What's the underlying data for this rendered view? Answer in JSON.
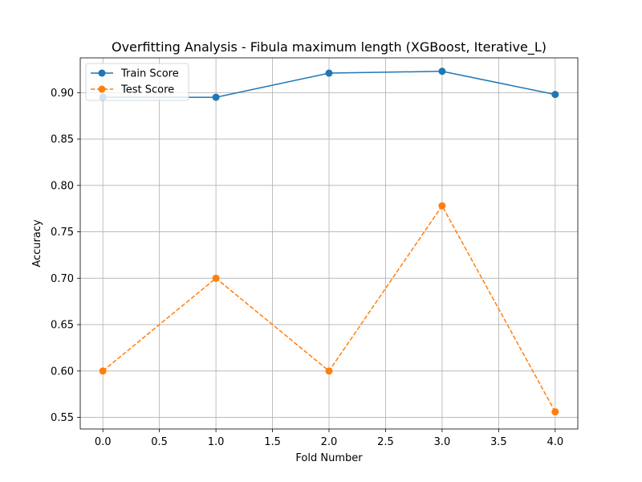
{
  "chart_data": {
    "type": "line",
    "title": "Overfitting Analysis - Fibula maximum length (XGBoost, Iterative_L)",
    "xlabel": "Fold Number",
    "ylabel": "Accuracy",
    "xlim": [
      -0.2,
      4.2
    ],
    "ylim": [
      0.5375,
      0.9375
    ],
    "xticks": [
      0.0,
      0.5,
      1.0,
      1.5,
      2.0,
      2.5,
      3.0,
      3.5,
      4.0
    ],
    "xtick_labels": [
      "0.0",
      "0.5",
      "1.0",
      "1.5",
      "2.0",
      "2.5",
      "3.0",
      "3.5",
      "4.0"
    ],
    "yticks": [
      0.55,
      0.6,
      0.65,
      0.7,
      0.75,
      0.8,
      0.85,
      0.9
    ],
    "ytick_labels": [
      "0.55",
      "0.60",
      "0.65",
      "0.70",
      "0.75",
      "0.80",
      "0.85",
      "0.90"
    ],
    "grid": true,
    "legend_position": "top-left",
    "x": [
      0,
      1,
      2,
      3,
      4
    ],
    "series": [
      {
        "name": "Train Score",
        "values": [
          0.895,
          0.895,
          0.921,
          0.923,
          0.898
        ],
        "color": "#1f77b4",
        "line_style": "solid",
        "marker": "circle"
      },
      {
        "name": "Test Score",
        "values": [
          0.6,
          0.7,
          0.6,
          0.778,
          0.556
        ],
        "color": "#ff7f0e",
        "line_style": "dashed",
        "marker": "circle"
      }
    ]
  }
}
